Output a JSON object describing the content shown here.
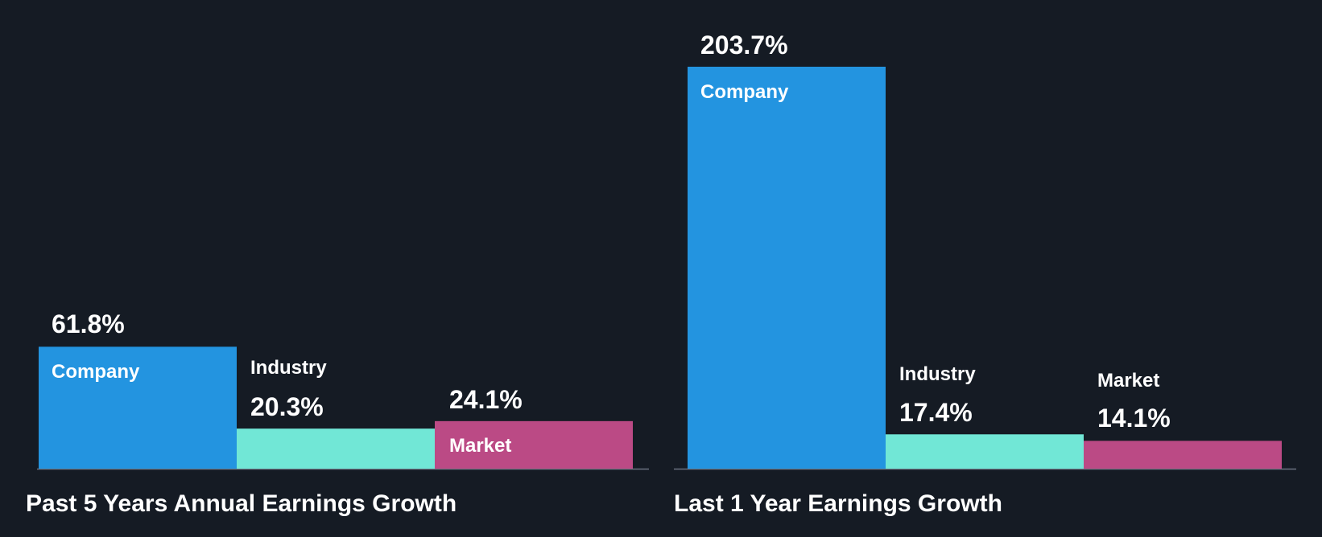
{
  "colors": {
    "background": "#151b24",
    "company": "#2394e0",
    "industry": "#71e7d6",
    "market": "#bb4a85",
    "axis": "#6b7280",
    "text": "#ffffff"
  },
  "chart_data": [
    {
      "type": "bar",
      "title": "Past 5 Years Annual Earnings Growth",
      "categories": [
        "Company",
        "Industry",
        "Market"
      ],
      "values": [
        61.8,
        20.3,
        24.1
      ],
      "value_labels": [
        "61.8%",
        "20.3%",
        "24.1%"
      ],
      "unit": "%",
      "ylim": [
        0,
        203.7
      ],
      "xlabel": "",
      "ylabel": "",
      "grid": false
    },
    {
      "type": "bar",
      "title": "Last 1 Year Earnings Growth",
      "categories": [
        "Company",
        "Industry",
        "Market"
      ],
      "values": [
        203.7,
        17.4,
        14.1
      ],
      "value_labels": [
        "203.7%",
        "17.4%",
        "14.1%"
      ],
      "unit": "%",
      "ylim": [
        0,
        203.7
      ],
      "xlabel": "",
      "ylabel": "",
      "grid": false
    }
  ]
}
